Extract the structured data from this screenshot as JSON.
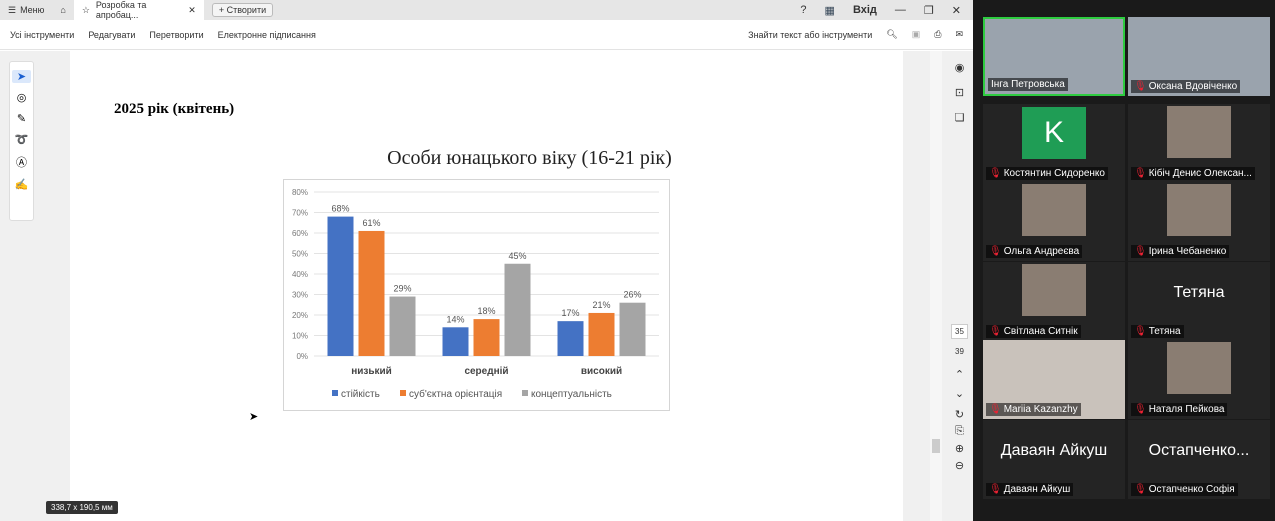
{
  "tabbar": {
    "menu": "Меню",
    "tab_title": "Розробка та апробац...",
    "create": "Створити",
    "login": "Вхід"
  },
  "menubar": {
    "items": [
      "Усі інструменти",
      "Редагувати",
      "Перетворити",
      "Електронне підписання"
    ],
    "search": "Знайти текст або інструменти"
  },
  "document": {
    "heading": "2025 рік (квітень)"
  },
  "pages": {
    "current": "35",
    "total": "39"
  },
  "status": "338,7 x 190,5 мм",
  "chart_data": {
    "type": "bar",
    "title": "Особи юнацького віку (16-21 рік)",
    "categories": [
      "низький",
      "середній",
      "високий"
    ],
    "series": [
      {
        "name": "стійкість",
        "values": [
          68,
          14,
          17
        ],
        "color": "#4472c4"
      },
      {
        "name": "суб'єктна орієнтація",
        "values": [
          61,
          18,
          21
        ],
        "color": "#ed7d31"
      },
      {
        "name": "концептуальність",
        "values": [
          29,
          45,
          26
        ],
        "color": "#a5a5a5"
      }
    ],
    "ylim": [
      0,
      80
    ],
    "yticks": [
      "0%",
      "10%",
      "20%",
      "30%",
      "40%",
      "50%",
      "60%",
      "70%",
      "80%"
    ],
    "value_labels": [
      [
        "68%",
        "14%",
        "17%"
      ],
      [
        "61%",
        "18%",
        "21%"
      ],
      [
        "29%",
        "45%",
        "26%"
      ]
    ],
    "grid": true,
    "legend": "bottom"
  },
  "participants": [
    {
      "name": "Інга Петровська",
      "active": true,
      "muted": false,
      "kind": "video"
    },
    {
      "name": "Оксана Вдовіченко",
      "muted": true,
      "kind": "video"
    },
    {
      "name": "Костянтин Сидоренко",
      "muted": true,
      "kind": "avatar",
      "initial": "K"
    },
    {
      "name": "Кібіч Денис Олексан...",
      "muted": true,
      "kind": "photo"
    },
    {
      "name": "Ольга Андреєва",
      "muted": true,
      "kind": "photo"
    },
    {
      "name": "Ірина Чебаненко",
      "muted": true,
      "kind": "photo"
    },
    {
      "name": "Світлана Ситнік",
      "muted": true,
      "kind": "photo"
    },
    {
      "name": "Тетяна",
      "muted": true,
      "kind": "text",
      "big": "Тетяна"
    },
    {
      "name": "Mariia Kazanzhy",
      "muted": true,
      "kind": "video"
    },
    {
      "name": "Наталя Пейкова",
      "muted": true,
      "kind": "photo"
    },
    {
      "name": "Даваян Айкуш",
      "muted": true,
      "kind": "text",
      "big": "Даваян Айкуш"
    },
    {
      "name": "Остапченко Софія",
      "muted": true,
      "kind": "text",
      "big": "Остапченко..."
    }
  ]
}
